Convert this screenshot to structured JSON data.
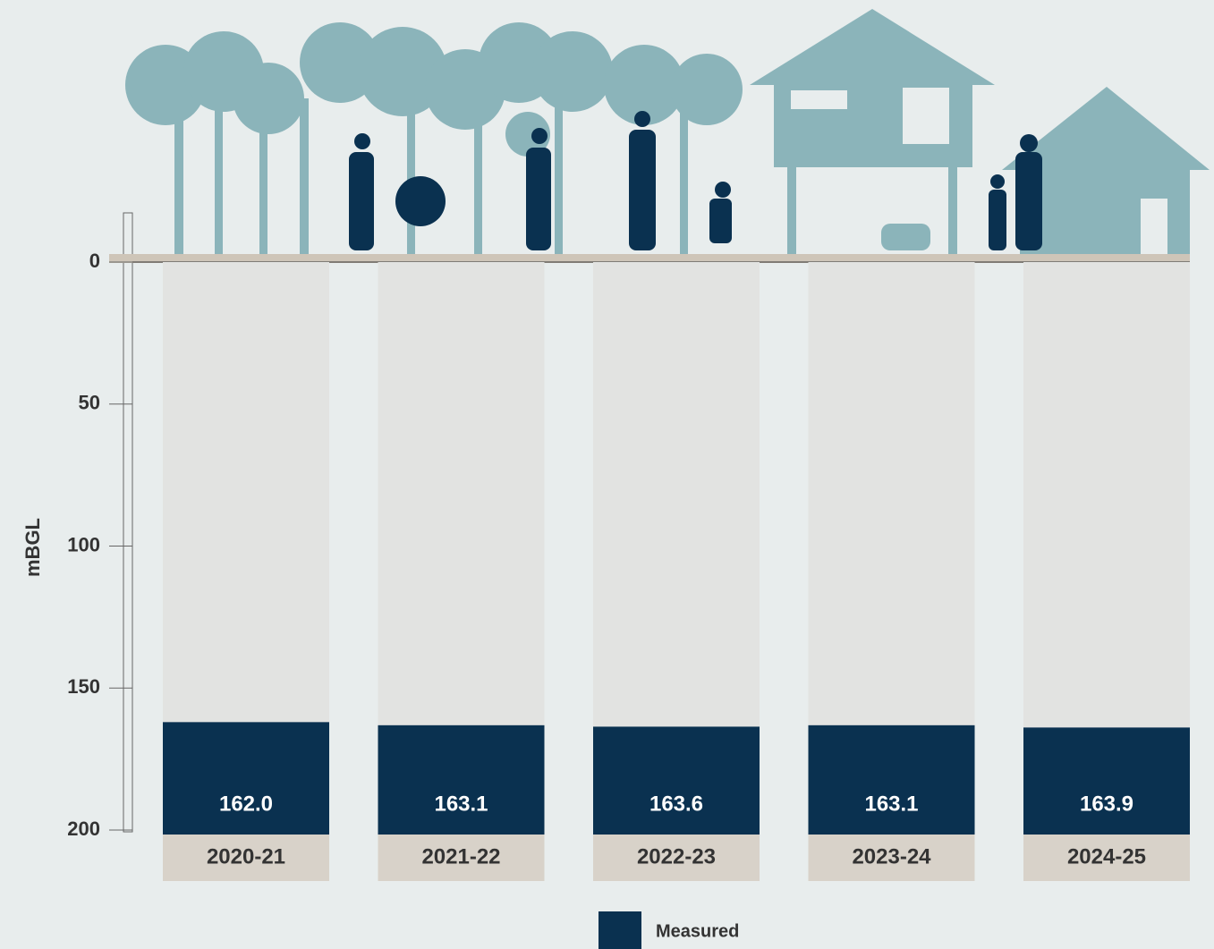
{
  "chart_data": {
    "type": "bar",
    "y_label": "mBGL",
    "categories": [
      "2020-21",
      "2021-22",
      "2022-23",
      "2023-24",
      "2024-25"
    ],
    "series": [
      {
        "name": "Measured",
        "color": "#0a3150",
        "values": [
          162.0,
          163.1,
          163.6,
          163.1,
          163.9
        ],
        "value_labels": [
          "162.0",
          "163.1",
          "163.6",
          "163.1",
          "163.9"
        ]
      }
    ],
    "ylim": [
      0,
      200
    ],
    "y_inverted": true,
    "yticks": [
      0,
      50,
      100,
      150,
      200
    ],
    "legend": "bottom"
  }
}
